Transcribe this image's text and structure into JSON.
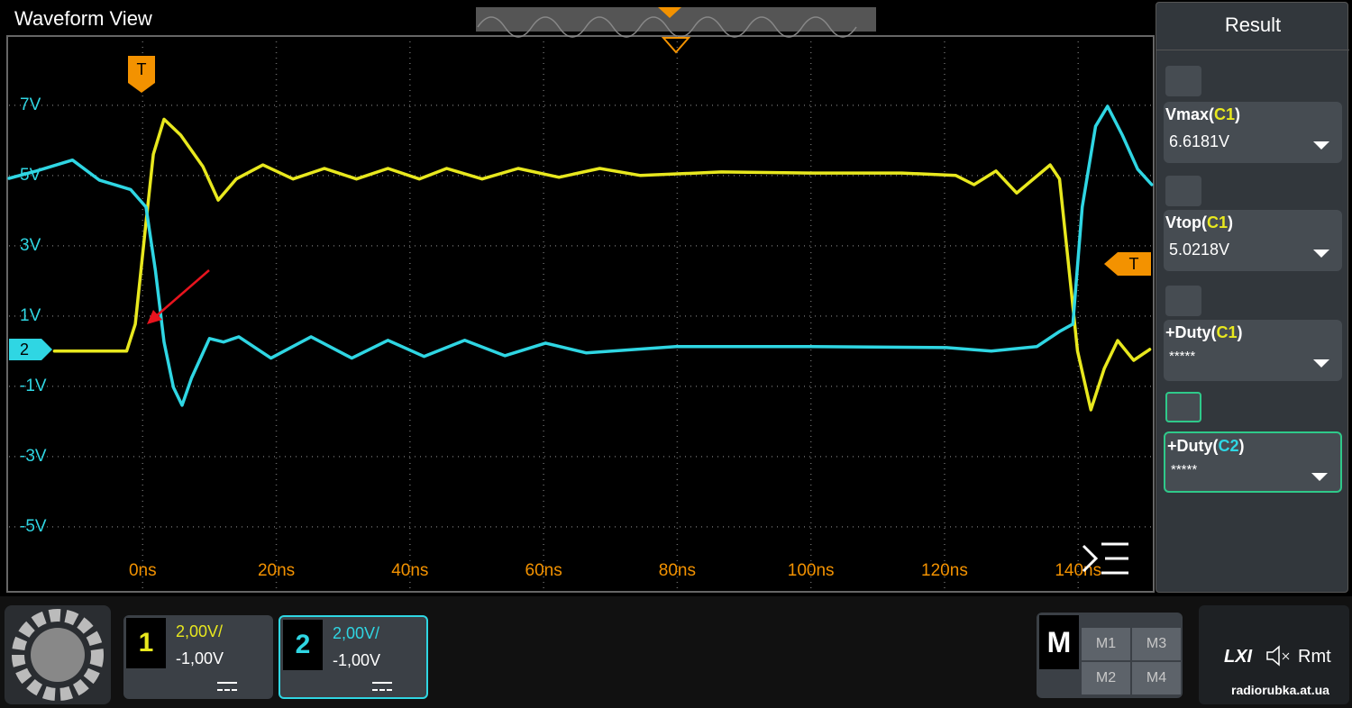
{
  "header": {
    "title": "Waveform View"
  },
  "chart_data": {
    "type": "line",
    "xlim": [
      -20,
      151.3
    ],
    "ylim": [
      -6.85,
      8.97
    ],
    "xticks": [
      {
        "value": 0,
        "label": "0ns"
      },
      {
        "value": 20,
        "label": "20ns"
      },
      {
        "value": 40,
        "label": "40ns"
      },
      {
        "value": 60,
        "label": "60ns"
      },
      {
        "value": 80,
        "label": "80ns"
      },
      {
        "value": 100,
        "label": "100ns"
      },
      {
        "value": 120,
        "label": "120ns"
      },
      {
        "value": 140,
        "label": "140ns"
      }
    ],
    "yticks": [
      {
        "value": 7,
        "label": "7V"
      },
      {
        "value": 5,
        "label": "5V"
      },
      {
        "value": 3,
        "label": "3V"
      },
      {
        "value": 1,
        "label": "1V"
      },
      {
        "value": -1,
        "label": "-1V"
      },
      {
        "value": -3,
        "label": "-3V"
      },
      {
        "value": -5,
        "label": "-5V"
      }
    ],
    "grid": true,
    "series": [
      {
        "color": "#e8e81e",
        "x": [
          -13.2,
          -2.4,
          -1.1,
          0.3,
          1.6,
          3.2,
          5.7,
          9,
          11.3,
          14,
          18,
          22.5,
          27.2,
          32,
          36.7,
          41.4,
          45.5,
          50.8,
          56.2,
          62.3,
          68.4,
          74.5,
          86.6,
          100,
          113.6,
          121.7,
          124.4,
          127.7,
          130.8,
          135.8,
          137.2,
          138.5,
          139.9,
          141.9,
          143.9,
          145.9,
          148.3,
          150.7
        ],
        "values": [
          0,
          0,
          0.77,
          3.3,
          5.6,
          6.6,
          6.15,
          5.26,
          4.3,
          4.9,
          5.3,
          4.9,
          5.2,
          4.9,
          5.2,
          4.9,
          5.2,
          4.9,
          5.2,
          4.95,
          5.2,
          5.0,
          5.1,
          5.07,
          5.07,
          5.0,
          4.74,
          5.13,
          4.5,
          5.3,
          4.9,
          2.56,
          0,
          -1.67,
          -0.5,
          0.3,
          -0.26,
          0.05
        ]
      },
      {
        "color": "#2fd6e3",
        "x": [
          -20,
          -15.9,
          -10.5,
          -6.5,
          -1.8,
          0.5,
          1.9,
          3.2,
          4.6,
          5.9,
          7.3,
          10,
          12.1,
          14.4,
          19.2,
          25.2,
          31.3,
          36.7,
          42.1,
          48.2,
          54.2,
          60.3,
          66.4,
          79.8,
          100,
          120.3,
          127,
          133.8,
          137.2,
          139.2,
          140.6,
          142.6,
          144.4,
          146.6,
          148.9,
          151
        ],
        "values": [
          4.92,
          5.13,
          5.44,
          4.87,
          4.6,
          4.1,
          2.3,
          0.26,
          -1.03,
          -1.54,
          -0.77,
          0.36,
          0.26,
          0.41,
          -0.2,
          0.41,
          -0.2,
          0.31,
          -0.15,
          0.31,
          -0.13,
          0.23,
          -0.05,
          0.13,
          0.13,
          0.1,
          0,
          0.13,
          0.56,
          0.77,
          4.1,
          6.4,
          6.97,
          6.15,
          5.18,
          4.74
        ]
      }
    ]
  },
  "markers": {
    "trigger_top": "T",
    "trigger_right": "T",
    "channel_2": "2"
  },
  "result_panel": {
    "title": "Result",
    "items": [
      {
        "label": "Vmax(C1)",
        "value": "6.6181V"
      },
      {
        "label": "Vtop(C1)",
        "value": "5.0218V"
      },
      {
        "label": "+Duty(C1)",
        "value": "*****"
      },
      {
        "label": "+Duty(C2)",
        "value": "*****"
      }
    ]
  },
  "channels": [
    {
      "number": "1",
      "scale": "2,00V/",
      "offset": "-1,00V"
    },
    {
      "number": "2",
      "scale": "2,00V/",
      "offset": "-1,00V"
    }
  ],
  "math": {
    "label": "M",
    "buttons": [
      "M1",
      "M3",
      "M2",
      "M4"
    ]
  },
  "status": {
    "lxi": "LXI",
    "remote": "Rmt"
  },
  "watermark": "radiorubka.at.ua"
}
